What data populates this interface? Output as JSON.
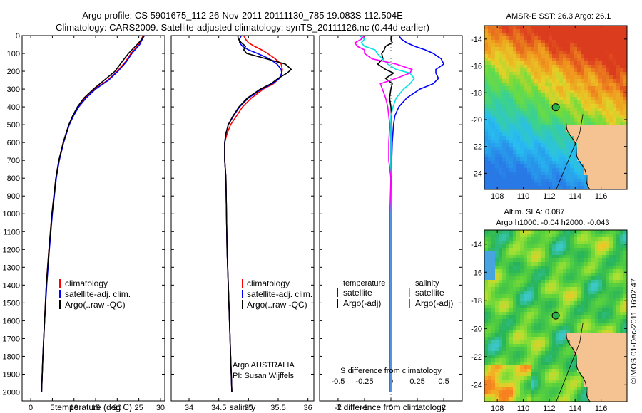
{
  "title": {
    "line1": "Argo profile: CS 5901675_112 26-Nov-2011 20111130_785 19.083S 112.504E",
    "line2": "Climatology: CARS2009. Satellite-adjusted climatology: synTS_20111126.nc (0.44d earlier)"
  },
  "depth_ticks": [
    0,
    100,
    200,
    300,
    400,
    500,
    600,
    700,
    800,
    900,
    1000,
    1100,
    1200,
    1300,
    1400,
    1500,
    1600,
    1700,
    1800,
    1900,
    2000
  ],
  "colors": {
    "climatology": "#ff0000",
    "satellite": "#0000ff",
    "argo": "#000000",
    "sal_satellite": "#00e5e5",
    "sal_argo": "#ff00ff"
  },
  "chart_data": [
    {
      "type": "line",
      "name": "temperature",
      "xlabel": "temperature (deg C)",
      "xlim": [
        -2,
        31
      ],
      "ylim": [
        0,
        2050
      ],
      "xticks": [
        0,
        5,
        10,
        15,
        20,
        25,
        30
      ],
      "legend": [
        "climatology",
        "satellite-adj. clim.",
        "Argo(..raw -QC)"
      ],
      "depth": [
        0,
        20,
        50,
        100,
        150,
        200,
        250,
        300,
        350,
        400,
        450,
        500,
        600,
        700,
        800,
        1000,
        1200,
        1400,
        1600,
        1800,
        2000
      ],
      "series": [
        {
          "name": "climatology",
          "values": [
            26.0,
            25.6,
            25.0,
            23.2,
            21.8,
            20.0,
            17.8,
            14.8,
            12.6,
            11.0,
            9.8,
            8.8,
            7.5,
            6.5,
            5.8,
            4.9,
            4.2,
            3.6,
            3.2,
            2.8,
            2.5
          ]
        },
        {
          "name": "satellite-adj. clim.",
          "values": [
            26.3,
            25.8,
            25.2,
            23.4,
            22.0,
            20.2,
            18.0,
            15.0,
            12.8,
            11.1,
            9.9,
            8.9,
            7.6,
            6.6,
            5.9,
            5.0,
            4.3,
            3.7,
            3.2,
            2.8,
            2.5
          ]
        },
        {
          "name": "Argo(..raw -QC)",
          "values": [
            26.1,
            25.7,
            24.6,
            22.6,
            21.0,
            19.5,
            17.0,
            14.5,
            12.3,
            10.8,
            9.7,
            8.8,
            7.5,
            6.5,
            5.8,
            4.9,
            4.2,
            3.6,
            3.2,
            2.8,
            2.5
          ]
        }
      ]
    },
    {
      "type": "line",
      "name": "salinity",
      "xlabel": "salinity",
      "xlim": [
        33.7,
        36.1
      ],
      "ylim": [
        0,
        2050
      ],
      "xticks": [
        34,
        34.5,
        35,
        35.5,
        36
      ],
      "legend": [
        "climatology",
        "satellite-adj. clim.",
        "Argo(..raw -QC)"
      ],
      "annotations": [
        "Argo AUSTRALIA",
        "PI: Susan Wijffels"
      ],
      "depth": [
        0,
        20,
        40,
        60,
        80,
        100,
        130,
        160,
        190,
        210,
        240,
        270,
        300,
        350,
        400,
        450,
        500,
        550,
        600,
        700,
        800,
        1000,
        1200,
        1400,
        1600,
        1800,
        1900,
        2000
      ],
      "series": [
        {
          "name": "climatology",
          "values": [
            34.92,
            34.95,
            35.0,
            35.1,
            35.22,
            35.32,
            35.45,
            35.55,
            35.57,
            35.56,
            35.52,
            35.42,
            35.25,
            35.05,
            34.9,
            34.8,
            34.7,
            34.64,
            34.6,
            34.6,
            34.62,
            34.63,
            34.64,
            34.66,
            34.68,
            34.7,
            34.71,
            34.72
          ]
        },
        {
          "name": "satellite-adj. clim.",
          "values": [
            34.88,
            34.85,
            34.85,
            34.9,
            35.0,
            35.15,
            35.35,
            35.48,
            35.55,
            35.56,
            35.52,
            35.4,
            35.22,
            35.0,
            34.85,
            34.75,
            34.66,
            34.62,
            34.6,
            34.6,
            34.62,
            34.63,
            34.64,
            34.66,
            34.68,
            34.7,
            34.71,
            34.72
          ]
        },
        {
          "name": "Argo(..raw -QC)",
          "values": [
            34.82,
            34.83,
            34.88,
            34.95,
            34.92,
            34.97,
            35.3,
            35.62,
            35.72,
            35.65,
            35.5,
            35.38,
            35.2,
            34.98,
            34.84,
            34.74,
            34.66,
            34.62,
            34.6,
            34.6,
            34.62,
            34.63,
            34.64,
            34.66,
            34.68,
            34.7,
            34.71,
            34.72
          ]
        }
      ]
    },
    {
      "type": "line",
      "name": "differences",
      "xlabel": "T difference from climatology",
      "xlabel_top": "S difference from climatology",
      "xlim": [
        -2.7,
        2.7
      ],
      "ylim": [
        0,
        2050
      ],
      "xticks": [
        -2,
        -1,
        0,
        1,
        2
      ],
      "xticks_top": [
        -0.5,
        -0.25,
        0,
        0.25,
        0.5
      ],
      "legend": [
        "temperature",
        "satellite",
        "Argo(-adj)",
        "salinity",
        "satellite",
        "Argo(-adj)"
      ],
      "depth": [
        0,
        20,
        40,
        60,
        80,
        100,
        130,
        160,
        190,
        210,
        240,
        270,
        300,
        350,
        400,
        450,
        500,
        600,
        700,
        800,
        1000,
        1200,
        1400,
        1600,
        1800,
        2000
      ],
      "series": [
        {
          "name": "T satellite",
          "values": [
            0.3,
            0.4,
            0.6,
            0.9,
            1.3,
            1.6,
            1.9,
            2.0,
            1.7,
            1.7,
            1.8,
            1.6,
            1.1,
            0.6,
            0.3,
            0.15,
            0.1,
            0.05,
            0.03,
            0.02,
            0.01,
            0.01,
            0.01,
            0.0,
            0.0,
            0.0
          ]
        },
        {
          "name": "T Argo(-adj)",
          "values": [
            0.05,
            0.0,
            0.05,
            -0.2,
            -0.25,
            -0.35,
            -0.3,
            -0.5,
            -0.2,
            0.1,
            -0.2,
            0.05,
            0.0,
            -0.05,
            0.0,
            0.02,
            0.0,
            0.0,
            0.0,
            0.0,
            0.0,
            0.0,
            0.0,
            0.0,
            0.0,
            0.0
          ]
        },
        {
          "name": "S satellite",
          "values": [
            -0.3,
            -0.25,
            -0.28,
            -0.25,
            -0.15,
            -0.13,
            -0.08,
            -0.03,
            0.05,
            0.18,
            0.22,
            0.18,
            0.12,
            0.05,
            0.02,
            0.0,
            0.0,
            0.0,
            0.0,
            0.0,
            0.0,
            0.0,
            0.0,
            0.0,
            0.0,
            0.0
          ]
        },
        {
          "name": "S Argo(-adj)",
          "values": [
            -0.25,
            -0.28,
            -0.34,
            -0.32,
            -0.25,
            -0.25,
            -0.18,
            0.05,
            0.2,
            0.18,
            0.05,
            -0.1,
            -0.08,
            -0.05,
            -0.03,
            -0.02,
            -0.01,
            -0.02,
            -0.02,
            0.0,
            -0.01,
            -0.01,
            -0.01,
            -0.01,
            -0.01,
            -0.01
          ]
        }
      ]
    }
  ],
  "maps": {
    "top_title": "AMSR-E SST: 26.3 Argo: 26.1",
    "bottom_title_1": "Altim. SLA: 0.087",
    "bottom_title_2": "Argo h1000: -0.04 h2000: -0.043",
    "lat_ticks": [
      "-14",
      "-16",
      "-18",
      "-20",
      "-22",
      "-24"
    ],
    "lon_ticks": [
      "108",
      "110",
      "112",
      "114",
      "116"
    ],
    "argo_position": {
      "lon": 112.504,
      "lat": -19.083
    }
  },
  "credit": "©IMOS 01-Dec-2011 16:02:47"
}
